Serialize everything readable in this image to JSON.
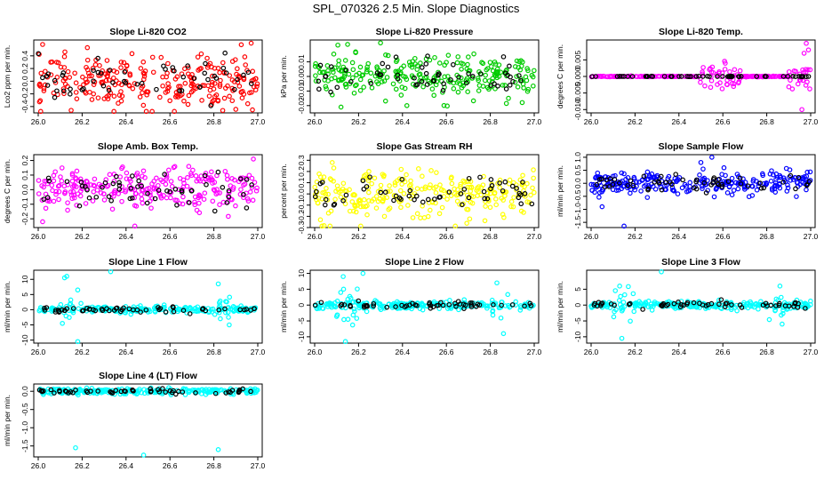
{
  "title": "SPL_070326  2.5 Min. Slope Diagnostics",
  "colors": {
    "red": "#ff0000",
    "green": "#00cc00",
    "magenta": "#ff00ff",
    "yellow": "#ffff00",
    "blue": "#0000ff",
    "cyan": "#00ffff",
    "black": "#000000"
  },
  "chart_data": [
    {
      "type": "scatter",
      "title": "Slope Li-820 CO2",
      "ylabel": "Lco2 ppm per min.",
      "color": "#ff0000",
      "xlim": [
        26.0,
        27.0
      ],
      "xticks": [
        "26.0",
        "26.2",
        "26.4",
        "26.6",
        "26.8",
        "27.0"
      ],
      "ylim": [
        -0.5,
        0.65
      ],
      "yticks": [
        -0.4,
        -0.2,
        0.0,
        0.2,
        0.4
      ],
      "ytick_labels": [
        "-0.4",
        "-0.2",
        "0.0",
        "0.2",
        "0.4"
      ],
      "spread": 0.2,
      "outliers": [
        [
          26.02,
          0.58
        ],
        [
          26.97,
          0.6
        ],
        [
          26.15,
          -0.46
        ],
        [
          26.62,
          -0.5
        ]
      ]
    },
    {
      "type": "scatter",
      "title": "Slope Li-820 Pressure",
      "ylabel": "kPa per min.",
      "color": "#00cc00",
      "xlim": [
        26.0,
        27.0
      ],
      "xticks": [
        "26.0",
        "26.2",
        "26.4",
        "26.6",
        "26.8",
        "27.0"
      ],
      "ylim": [
        -0.025,
        0.025
      ],
      "yticks": [
        -0.02,
        -0.01,
        0.0,
        0.01
      ],
      "ytick_labels": [
        "-0.02",
        "-0.01",
        "0.00",
        "0.01"
      ],
      "spread": 0.007,
      "outliers": [
        [
          26.15,
          0.022
        ],
        [
          26.3,
          0.023
        ],
        [
          26.42,
          -0.02
        ],
        [
          26.12,
          -0.021
        ]
      ]
    },
    {
      "type": "scatter",
      "title": "Slope Li-820 Temp.",
      "ylabel": "degrees C per min.",
      "color": "#ff00ff",
      "xlim": [
        26.0,
        27.0
      ],
      "xticks": [
        "26.0",
        "26.2",
        "26.4",
        "26.6",
        "26.8",
        "27.0"
      ],
      "ylim": [
        -0.011,
        0.011
      ],
      "yticks": [
        -0.01,
        -0.005,
        0.0,
        0.005
      ],
      "ytick_labels": [
        "-0.010",
        "-0.005",
        "0.000",
        "0.005"
      ],
      "spread": 0.0002,
      "outliers": [
        [
          26.98,
          0.01
        ],
        [
          26.97,
          0.007
        ],
        [
          26.96,
          -0.01
        ],
        [
          26.99,
          0.008
        ]
      ]
    },
    {
      "type": "scatter",
      "title": "Slope Amb. Box Temp.",
      "ylabel": "degrees C per min.",
      "color": "#ff00ff",
      "xlim": [
        26.0,
        27.0
      ],
      "xticks": [
        "26.0",
        "26.2",
        "26.4",
        "26.6",
        "26.8",
        "27.0"
      ],
      "ylim": [
        -0.26,
        0.24
      ],
      "yticks": [
        -0.2,
        -0.1,
        0.0,
        0.1,
        0.2
      ],
      "ytick_labels": [
        "-0.2",
        "-0.1",
        "0.0",
        "0.1",
        "0.2"
      ],
      "spread": 0.07,
      "outliers": [
        [
          26.44,
          -0.25
        ],
        [
          26.98,
          0.21
        ],
        [
          26.02,
          -0.22
        ]
      ]
    },
    {
      "type": "scatter",
      "title": "Slope Gas Stream RH",
      "ylabel": "percent per min.",
      "color": "#ffff00",
      "xlim": [
        26.0,
        27.0
      ],
      "xticks": [
        "26.0",
        "26.2",
        "26.4",
        "26.6",
        "26.8",
        "27.0"
      ],
      "ylim": [
        -0.3,
        0.35
      ],
      "yticks": [
        -0.3,
        -0.2,
        -0.1,
        0.0,
        0.1,
        0.2,
        0.3
      ],
      "ytick_labels": [
        "-0.3",
        "-0.2",
        "-0.1",
        "0.0",
        "0.1",
        "0.2",
        "0.3"
      ],
      "spread": 0.1,
      "outliers": [
        [
          26.07,
          -0.29
        ],
        [
          26.21,
          -0.3
        ],
        [
          26.08,
          0.28
        ]
      ]
    },
    {
      "type": "scatter",
      "title": "Slope Sample Flow",
      "ylabel": "ml/min per min.",
      "color": "#0000ff",
      "xlim": [
        26.0,
        27.0
      ],
      "xticks": [
        "26.0",
        "26.2",
        "26.4",
        "26.6",
        "26.8",
        "27.0"
      ],
      "ylim": [
        -1.7,
        1.1
      ],
      "yticks": [
        -1.5,
        -1.0,
        -0.5,
        0.0,
        0.5,
        1.0
      ],
      "ytick_labels": [
        "-1.5",
        "-1.0",
        "-0.5",
        "0.0",
        "0.5",
        "1.0"
      ],
      "spread": 0.22,
      "outliers": [
        [
          26.55,
          1.0
        ],
        [
          26.5,
          0.8
        ],
        [
          26.15,
          -1.65
        ],
        [
          26.05,
          -0.9
        ]
      ]
    },
    {
      "type": "scatter",
      "title": "Slope Line 1 Flow",
      "ylabel": "ml/min per min.",
      "color": "#00ffff",
      "xlim": [
        26.0,
        27.0
      ],
      "xticks": [
        "26.0",
        "26.2",
        "26.4",
        "26.6",
        "26.8",
        "27.0"
      ],
      "ylim": [
        -11,
        13
      ],
      "yticks": [
        -10,
        -5,
        0,
        5,
        10
      ],
      "ytick_labels": [
        "-10",
        "-5",
        "0",
        "5",
        "10"
      ],
      "spread": 0.5,
      "outliers": [
        [
          26.12,
          10.5
        ],
        [
          26.13,
          11
        ],
        [
          26.18,
          6.5
        ],
        [
          26.33,
          12.8
        ],
        [
          26.18,
          -10.5
        ],
        [
          26.82,
          8.5
        ],
        [
          26.11,
          -4.5
        ],
        [
          26.87,
          -5
        ]
      ]
    },
    {
      "type": "scatter",
      "title": "Slope Line 2 Flow",
      "ylabel": "ml/min per min.",
      "color": "#00ffff",
      "xlim": [
        26.0,
        27.0
      ],
      "xticks": [
        "26.0",
        "26.2",
        "26.4",
        "26.6",
        "26.8",
        "27.0"
      ],
      "ylim": [
        -12,
        11
      ],
      "yticks": [
        -10,
        -5,
        0,
        5,
        10
      ],
      "ytick_labels": [
        "-10",
        "-5",
        "0",
        "5",
        "10"
      ],
      "spread": 0.6,
      "outliers": [
        [
          26.13,
          9
        ],
        [
          26.22,
          10
        ],
        [
          26.14,
          -11.5
        ],
        [
          26.86,
          -9
        ],
        [
          26.83,
          7
        ]
      ]
    },
    {
      "type": "scatter",
      "title": "Slope Line 3 Flow",
      "ylabel": "ml/min per min.",
      "color": "#00ffff",
      "xlim": [
        26.0,
        27.0
      ],
      "xticks": [
        "26.0",
        "26.2",
        "26.4",
        "26.6",
        "26.8",
        "27.0"
      ],
      "ylim": [
        -12,
        11
      ],
      "yticks": [
        -10,
        -5,
        0,
        5
      ],
      "ytick_labels": [
        "-10",
        "-5",
        "0",
        "5"
      ],
      "spread": 0.6,
      "outliers": [
        [
          26.13,
          6
        ],
        [
          26.32,
          10.5
        ],
        [
          26.14,
          -10.5
        ],
        [
          26.87,
          -6
        ],
        [
          26.86,
          6
        ]
      ]
    },
    {
      "type": "scatter",
      "title": "Slope Line 4 (LT) Flow",
      "ylabel": "ml/min per min.",
      "color": "#00ffff",
      "xlim": [
        26.0,
        27.0
      ],
      "xticks": [
        "26.0",
        "26.2",
        "26.4",
        "26.6",
        "26.8",
        "27.0"
      ],
      "ylim": [
        -1.8,
        0.2
      ],
      "yticks": [
        -1.5,
        -1.0,
        -0.5,
        0.0
      ],
      "ytick_labels": [
        "-1.5",
        "-1.0",
        "-0.5",
        "0.0"
      ],
      "spread": 0.04,
      "outliers": [
        [
          26.17,
          -1.55
        ],
        [
          26.48,
          -1.75
        ],
        [
          26.82,
          -1.6
        ]
      ]
    }
  ]
}
